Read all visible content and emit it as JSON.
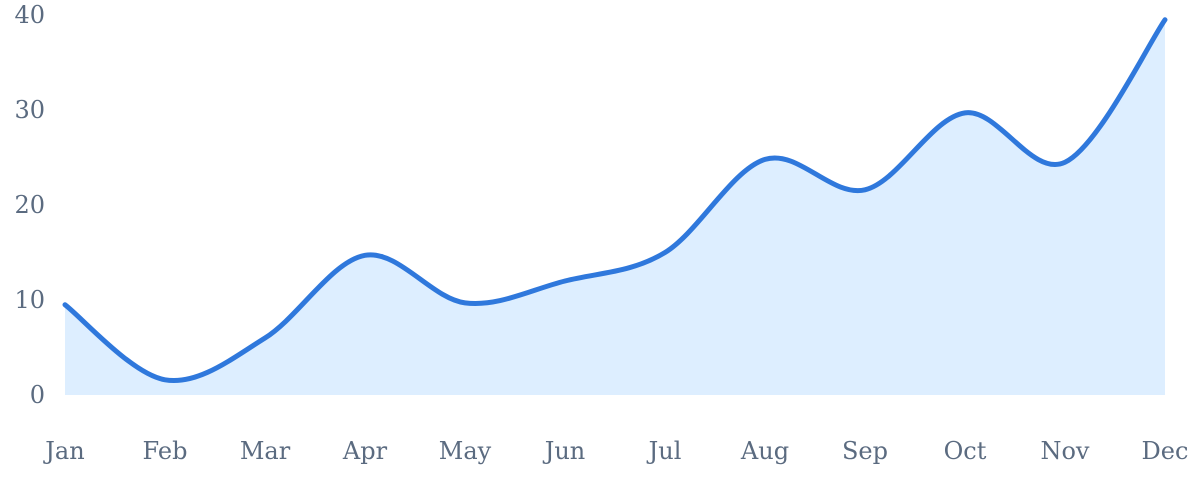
{
  "chart_data": {
    "type": "area",
    "categories": [
      "Jan",
      "Feb",
      "Mar",
      "Apr",
      "May",
      "Jun",
      "Jul",
      "Aug",
      "Sep",
      "Oct",
      "Nov",
      "Dec"
    ],
    "series": [
      {
        "values": [
          9.5,
          1.6,
          6,
          14.7,
          9.7,
          12,
          15,
          24.8,
          21.6,
          29.7,
          24.5,
          39.5
        ]
      }
    ],
    "title": "",
    "xlabel": "",
    "ylabel": "",
    "ylim": [
      0,
      40
    ],
    "yticks": [
      0,
      10,
      20,
      30,
      40
    ],
    "grid": false,
    "smooth": true,
    "colors": {
      "line": "#2f78dc",
      "fill": "#ddeeff",
      "text": "#5b6b80"
    }
  }
}
